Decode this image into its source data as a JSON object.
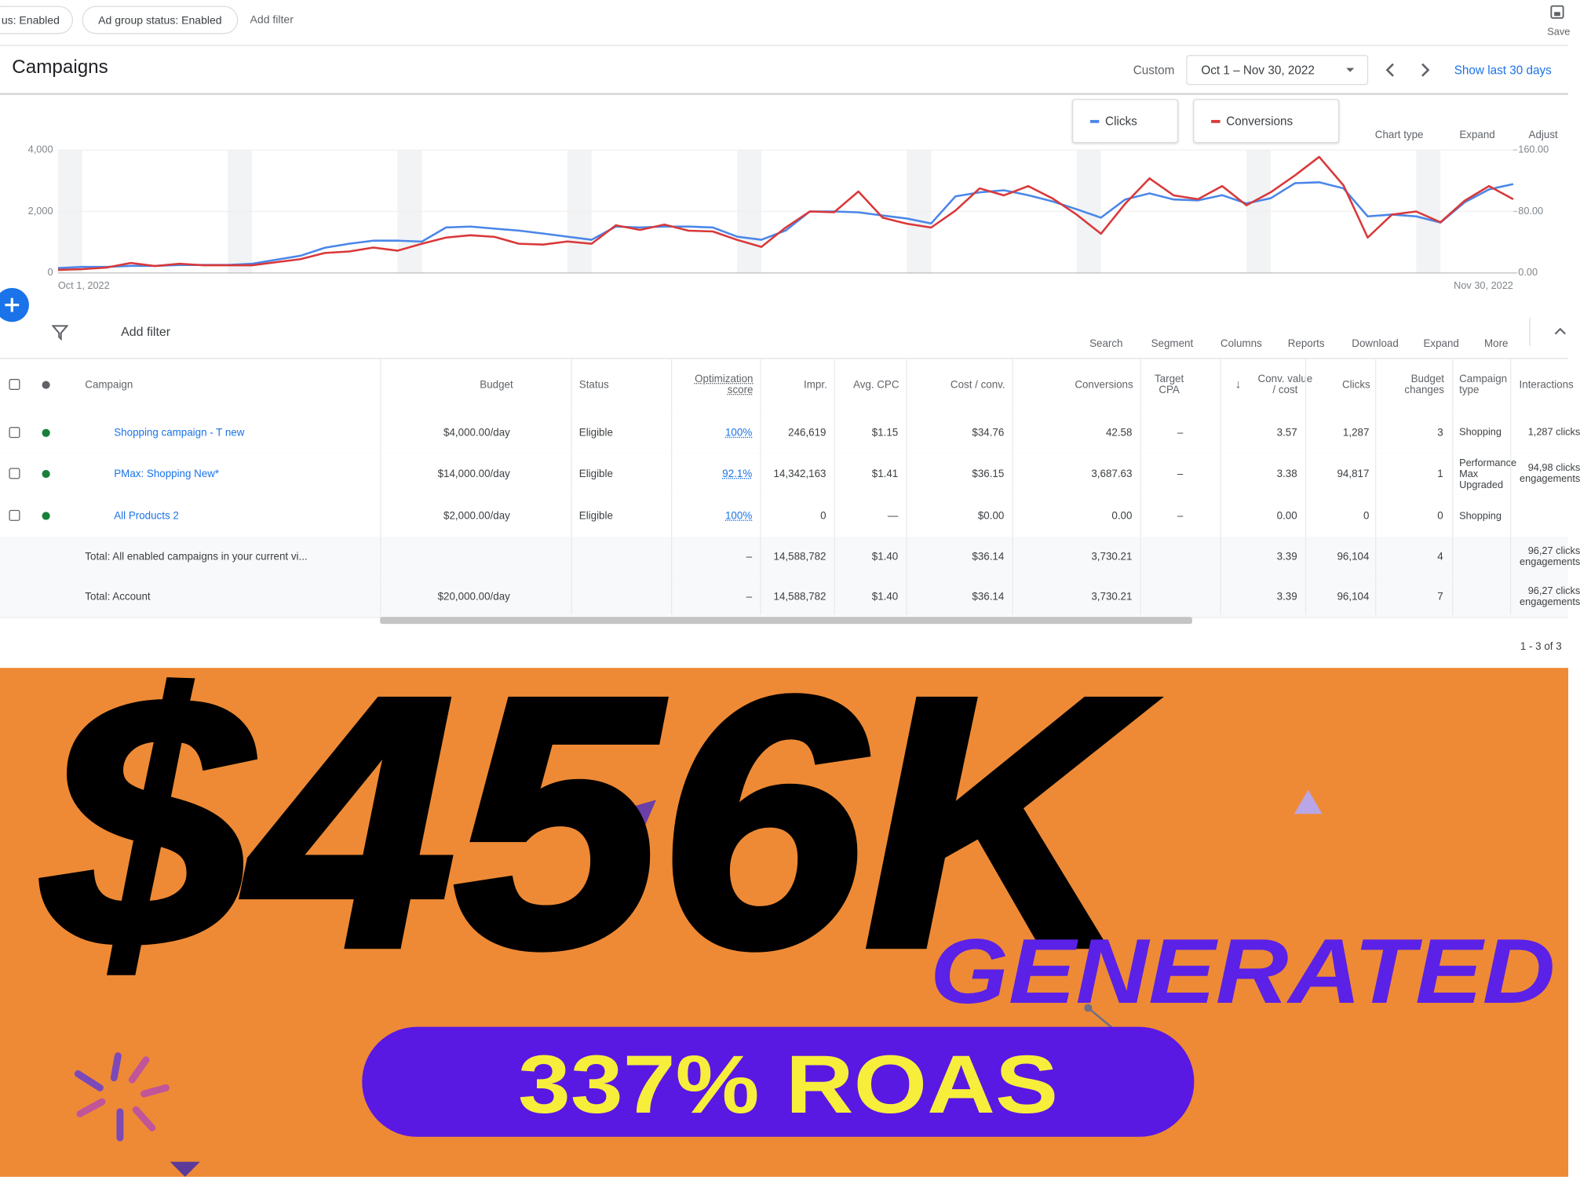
{
  "filters": [
    "us: Enabled",
    "Ad group status: Enabled",
    "Add filter"
  ],
  "save": "Save",
  "header": {
    "title": "Campaigns",
    "range_label": "Custom",
    "range": "Oct 1 – Nov 30, 2022",
    "show_last": "Show last 30 days"
  },
  "chart_tools": [
    "Chart type",
    "Expand",
    "Adjust"
  ],
  "chart_data": {
    "type": "line",
    "categories": [
      "Oct 1, 2022",
      null,
      null,
      null,
      null,
      null,
      null,
      null,
      null,
      null,
      null,
      null,
      null,
      null,
      null,
      null,
      null,
      null,
      null,
      null,
      null,
      null,
      null,
      null,
      null,
      null,
      null,
      null,
      null,
      null,
      null,
      null,
      null,
      null,
      null,
      null,
      null,
      null,
      null,
      null,
      null,
      null,
      null,
      null,
      null,
      null,
      null,
      null,
      null,
      null,
      null,
      null,
      null,
      null,
      null,
      null,
      null,
      null,
      null,
      null,
      "Nov 30, 2022"
    ],
    "series": [
      {
        "name": "Clicks",
        "color": "#4a86e8",
        "values": [
          160,
          200,
          200,
          230,
          230,
          260,
          260,
          260,
          300,
          430,
          560,
          820,
          950,
          1050,
          1050,
          1020,
          1480,
          1510,
          1440,
          1380,
          1280,
          1180,
          1080,
          1510,
          1480,
          1510,
          1510,
          1480,
          1180,
          1080,
          1380,
          2000,
          2000,
          1970,
          1870,
          1770,
          1610,
          2490,
          2620,
          2690,
          2530,
          2330,
          2070,
          1800,
          2390,
          2590,
          2390,
          2360,
          2530,
          2260,
          2430,
          2920,
          2950,
          2750,
          1840,
          1900,
          1840,
          1640,
          2300,
          2720,
          2890
        ]
      },
      {
        "name": "Conversions",
        "color": "#d9383a",
        "axis": "y2",
        "values": [
          4,
          5,
          7,
          13,
          9,
          12,
          10,
          10,
          10,
          14,
          18,
          26,
          28,
          33,
          29,
          38,
          46,
          49,
          47,
          38,
          37,
          41,
          38,
          62,
          56,
          63,
          55,
          54,
          43,
          34,
          59,
          80,
          79,
          106,
          72,
          64,
          59,
          81,
          110,
          101,
          113,
          97,
          76,
          51,
          90,
          123,
          101,
          96,
          113,
          88,
          105,
          127,
          151,
          114,
          46,
          76,
          80,
          66,
          94,
          113,
          96
        ]
      }
    ],
    "ylim": [
      0,
      4000
    ],
    "yticks": [
      0,
      {
        "value": 2000,
        "label": "2,000"
      },
      {
        "value": 4000,
        "label": "4,000"
      }
    ],
    "y2lim": [
      0,
      160
    ],
    "y2ticks": [
      {
        "value": 0,
        "label": "0.00"
      },
      {
        "value": 80,
        "label": "80.00"
      },
      {
        "value": 160,
        "label": "160.00"
      }
    ],
    "grid": true
  },
  "toolbar": {
    "add_filter": "Add filter",
    "tools": [
      "Search",
      "Segment",
      "Columns",
      "Reports",
      "Download",
      "Expand",
      "More"
    ]
  },
  "table": {
    "columns": [
      "Campaign",
      "Budget",
      "Status",
      "Optimization score",
      "Impr.",
      "Avg. CPC",
      "Cost / conv.",
      "Conversions",
      "Target CPA",
      "Conv. value / cost",
      "Clicks",
      "Budget changes",
      "Campaign type",
      "Interactions"
    ],
    "rows": [
      [
        "Shopping campaign - T      new",
        "$4,000.00/day",
        "Eligible",
        "100%",
        "246,619",
        "$1.15",
        "$34.76",
        "42.58",
        "–",
        "3.57",
        "1,287",
        "3",
        "Shopping",
        "1,287 clicks"
      ],
      [
        "PMax:                Shopping New*",
        "$14,000.00/day",
        "Eligible",
        "92.1%",
        "14,342,163",
        "$1.41",
        "$36.15",
        "3,687.63",
        "–",
        "3.38",
        "94,817",
        "1",
        "Performance Max Upgraded",
        "94,98 clicks engagements"
      ],
      [
        "All Products 2",
        "$2,000.00/day",
        "Eligible",
        "100%",
        "0",
        "—",
        "$0.00",
        "0.00",
        "–",
        "0.00",
        "0",
        "0",
        "Shopping",
        null
      ]
    ],
    "totals": [
      [
        "Total: All enabled campaigns in your current vi...",
        null,
        null,
        "–",
        "14,588,782",
        "$1.40",
        "$36.14",
        "3,730.21",
        null,
        "3.39",
        "96,104",
        "4",
        null,
        "96,27 clicks engagements"
      ],
      [
        "Total: Account",
        "$20,000.00/day",
        null,
        "–",
        "14,588,782",
        "$1.40",
        "$36.14",
        "3,730.21",
        null,
        "3.39",
        "96,104",
        "7",
        null,
        "96,27 clicks engagements"
      ]
    ]
  },
  "pagination": "1 - 3 of 3",
  "promo": {
    "amount": "$456K",
    "generated": "GENERATED",
    "roas": "337% ROAS"
  }
}
